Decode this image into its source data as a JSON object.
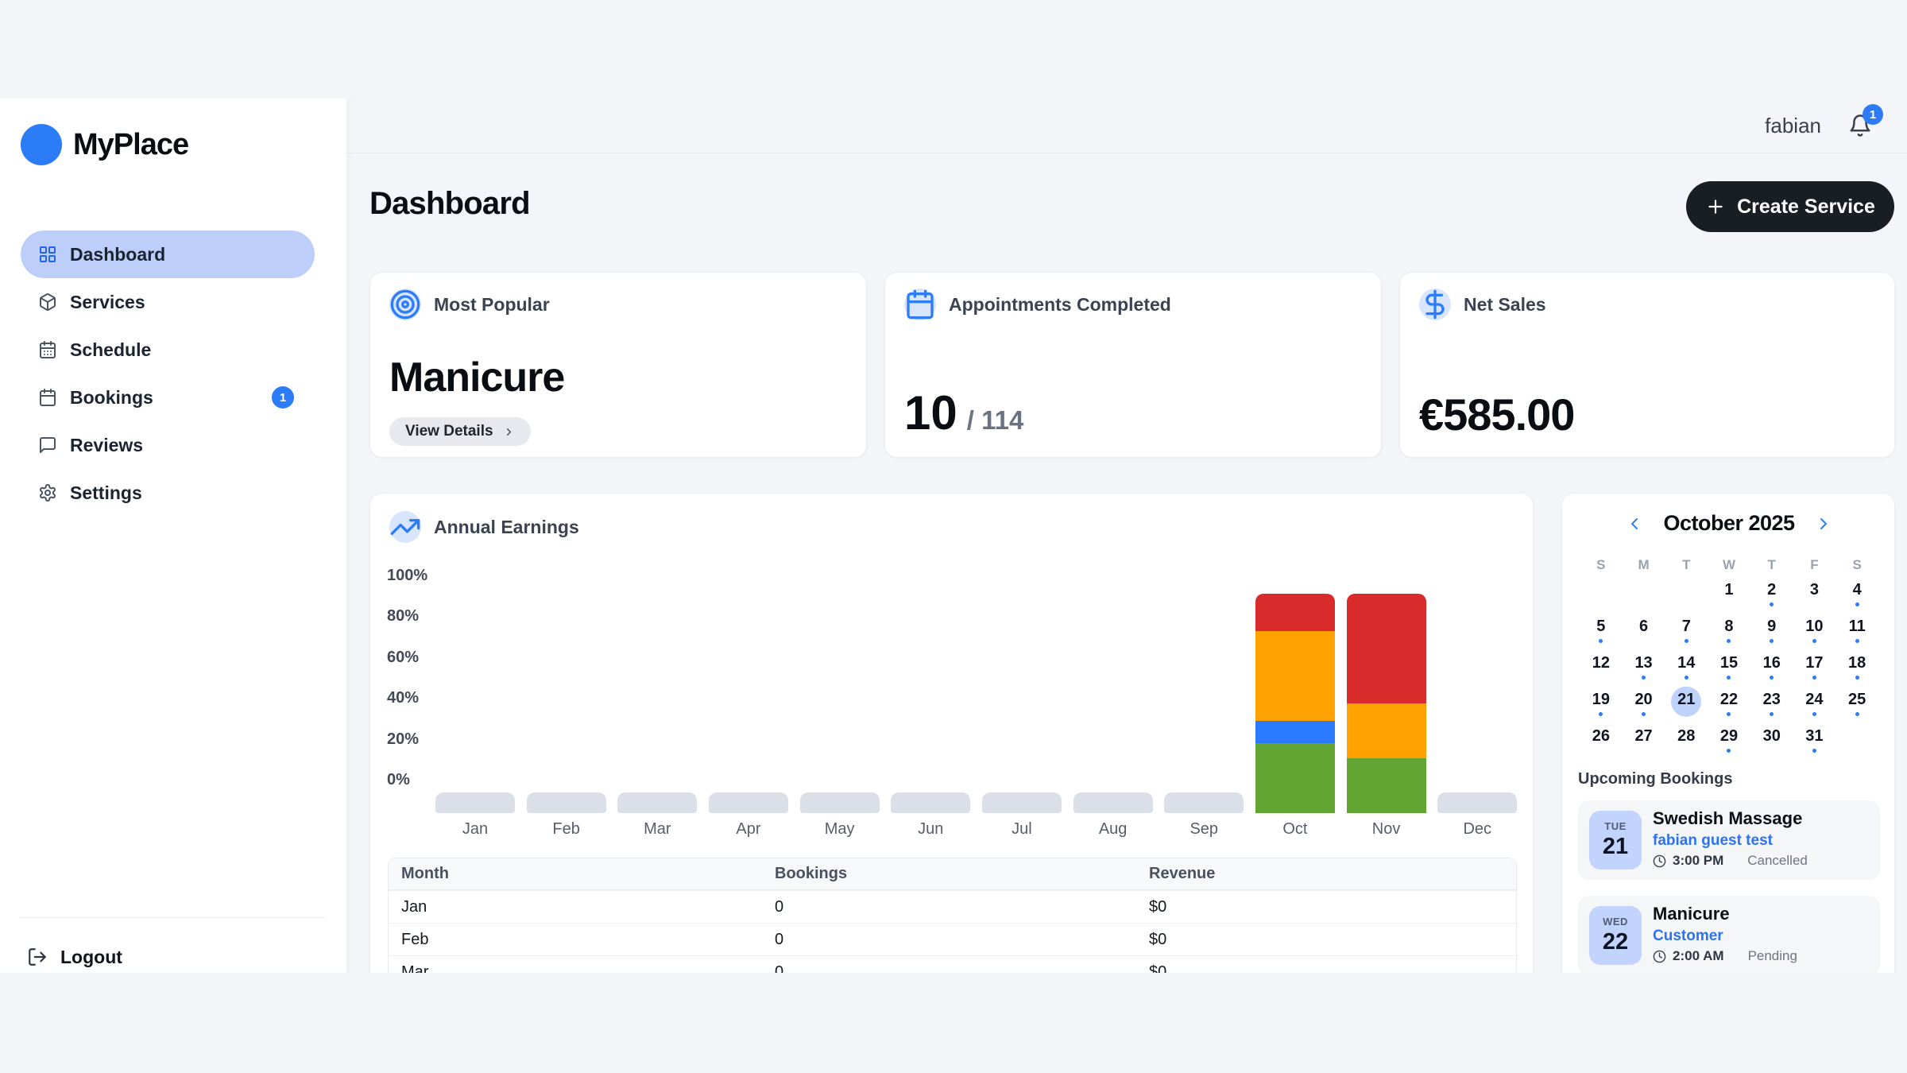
{
  "topbar": {
    "username": "fabian",
    "notification_count": "1"
  },
  "sidebar": {
    "brand": "MyPlace",
    "items": [
      {
        "label": "Dashboard",
        "icon": "grid",
        "active": true
      },
      {
        "label": "Services",
        "icon": "package"
      },
      {
        "label": "Schedule",
        "icon": "calendar-days"
      },
      {
        "label": "Bookings",
        "icon": "calendar",
        "badge": "1"
      },
      {
        "label": "Reviews",
        "icon": "message"
      },
      {
        "label": "Settings",
        "icon": "gear"
      }
    ],
    "logout_label": "Logout"
  },
  "header": {
    "title": "Dashboard",
    "create_button": "Create Service"
  },
  "stats": {
    "most_popular": {
      "label": "Most Popular",
      "icon": "target",
      "value": "Manicure",
      "action": "View Details"
    },
    "appointments": {
      "label": "Appointments Completed",
      "icon": "calendar",
      "completed": "10",
      "total": "/ 114"
    },
    "net_sales": {
      "label": "Net Sales",
      "icon": "dollar",
      "value": "€585.00"
    }
  },
  "chart_data": {
    "type": "bar",
    "stacked": true,
    "title": "Annual Earnings",
    "unit": "percent",
    "categories": [
      "Jan",
      "Feb",
      "Mar",
      "Apr",
      "May",
      "Jun",
      "Jul",
      "Aug",
      "Sep",
      "Oct",
      "Nov",
      "Dec"
    ],
    "series": [
      {
        "name": "segment-green",
        "color": "#62A533",
        "values": [
          0,
          0,
          0,
          0,
          0,
          0,
          0,
          0,
          0,
          32,
          25,
          0
        ]
      },
      {
        "name": "segment-blue",
        "color": "#2B7AFF",
        "values": [
          0,
          0,
          0,
          0,
          0,
          0,
          0,
          0,
          0,
          10,
          0,
          0
        ]
      },
      {
        "name": "segment-orange",
        "color": "#FFA201",
        "values": [
          0,
          0,
          0,
          0,
          0,
          0,
          0,
          0,
          0,
          41,
          25,
          0
        ]
      },
      {
        "name": "segment-red",
        "color": "#D92B2B",
        "values": [
          0,
          0,
          0,
          0,
          0,
          0,
          0,
          0,
          0,
          17,
          50,
          0
        ]
      }
    ],
    "y_ticks": [
      "100%",
      "80%",
      "60%",
      "40%",
      "20%",
      "0%"
    ],
    "ylim": [
      0,
      100
    ],
    "grid": false,
    "legend": false,
    "empty_bar_color": "#DADFE8"
  },
  "table": {
    "columns": [
      "Month",
      "Bookings",
      "Revenue"
    ],
    "rows": [
      [
        "Jan",
        "0",
        "$0"
      ],
      [
        "Feb",
        "0",
        "$0"
      ],
      [
        "Mar",
        "0",
        "$0"
      ]
    ]
  },
  "calendar": {
    "title": "October 2025",
    "weekdays": [
      "S",
      "M",
      "T",
      "W",
      "T",
      "F",
      "S"
    ],
    "weeks": [
      [
        null,
        null,
        null,
        1,
        2,
        3,
        4
      ],
      [
        5,
        6,
        7,
        8,
        9,
        10,
        11
      ],
      [
        12,
        13,
        14,
        15,
        16,
        17,
        18
      ],
      [
        19,
        20,
        21,
        22,
        23,
        24,
        25
      ],
      [
        26,
        27,
        28,
        29,
        30,
        31,
        null
      ]
    ],
    "dot_days": [
      2,
      4,
      5,
      7,
      8,
      9,
      10,
      11,
      13,
      14,
      15,
      16,
      17,
      18,
      19,
      20,
      21,
      22,
      23,
      24,
      25,
      29,
      31
    ],
    "selected_day": 21
  },
  "bookings": {
    "heading": "Upcoming Bookings",
    "items": [
      {
        "day_label": "TUE",
        "day": "21",
        "title": "Swedish Massage",
        "customer": "fabian guest test",
        "time": "3:00 PM",
        "status": "Cancelled"
      },
      {
        "day_label": "WED",
        "day": "22",
        "title": "Manicure",
        "customer": "Customer",
        "time": "2:00 AM",
        "status": "Pending"
      }
    ]
  },
  "colors": {
    "accent_blue": "#2B7CF6",
    "page_bg": "#F4F5F8",
    "active_pill": "#BDCEFA",
    "dark_button": "#191D24"
  }
}
